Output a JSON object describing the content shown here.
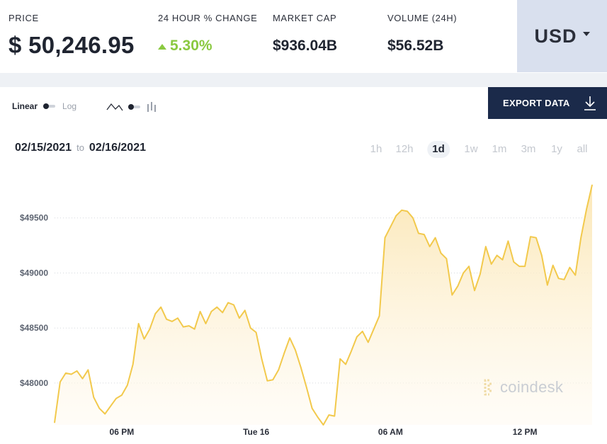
{
  "stats": {
    "price_label": "PRICE",
    "price_value": "$ 50,246.95",
    "change_label": "24 HOUR % CHANGE",
    "change_value": "5.30%",
    "mcap_label": "MARKET CAP",
    "mcap_value": "$936.04B",
    "volume_label": "VOLUME (24H)",
    "volume_value": "$56.52B"
  },
  "currency": "USD",
  "controls": {
    "scale_linear": "Linear",
    "scale_log": "Log",
    "export_label": "EXPORT DATA",
    "date_from": "02/15/2021",
    "date_to_word": "to",
    "date_to": "02/16/2021",
    "ranges": [
      "1h",
      "12h",
      "1d",
      "1w",
      "1m",
      "3m",
      "1y",
      "all"
    ],
    "active_range": "1d"
  },
  "colors": {
    "line": "#f2c94c",
    "fill_top": "#fbe6b3",
    "change_up": "#8ac940",
    "export_bg": "#1b2a4a",
    "currency_bg": "#d9e0ee"
  },
  "watermark": "coindesk",
  "chart_data": {
    "type": "area",
    "title": "",
    "xlabel": "",
    "ylabel": "",
    "x_tick_labels": [
      "06 PM",
      "Tue 16",
      "06 AM",
      "12 PM"
    ],
    "y_ticks": [
      48000,
      48500,
      49000,
      49500
    ],
    "y_tick_labels": [
      "$48000",
      "$48500",
      "$49000",
      "$49500"
    ],
    "ylim": [
      47620,
      50000
    ],
    "xlim": [
      "2021-02-15T15:00",
      "2021-02-16T15:00"
    ],
    "grid": "horizontal-dotted",
    "series": [
      {
        "x": [
          "2021-02-15T15:00",
          "2021-02-15T15:15",
          "2021-02-15T15:30",
          "2021-02-15T15:45",
          "2021-02-15T16:00",
          "2021-02-15T16:15",
          "2021-02-15T16:30",
          "2021-02-15T16:45",
          "2021-02-15T17:00",
          "2021-02-15T17:15",
          "2021-02-15T17:30",
          "2021-02-15T17:45",
          "2021-02-15T18:00",
          "2021-02-15T18:15",
          "2021-02-15T18:30",
          "2021-02-15T18:45",
          "2021-02-15T19:00",
          "2021-02-15T19:15",
          "2021-02-15T19:30",
          "2021-02-15T19:45",
          "2021-02-15T20:00",
          "2021-02-15T20:15",
          "2021-02-15T20:30",
          "2021-02-15T20:45",
          "2021-02-15T21:00",
          "2021-02-15T21:15",
          "2021-02-15T21:30",
          "2021-02-15T21:45",
          "2021-02-15T22:00",
          "2021-02-15T22:15",
          "2021-02-15T22:30",
          "2021-02-15T22:45",
          "2021-02-15T23:00",
          "2021-02-15T23:15",
          "2021-02-15T23:30",
          "2021-02-15T23:45",
          "2021-02-16T00:00",
          "2021-02-16T00:15",
          "2021-02-16T00:30",
          "2021-02-16T00:45",
          "2021-02-16T01:00",
          "2021-02-16T01:15",
          "2021-02-16T01:30",
          "2021-02-16T01:45",
          "2021-02-16T02:00",
          "2021-02-16T02:15",
          "2021-02-16T02:30",
          "2021-02-16T02:45",
          "2021-02-16T03:00",
          "2021-02-16T03:15",
          "2021-02-16T03:30",
          "2021-02-16T03:45",
          "2021-02-16T04:00",
          "2021-02-16T04:15",
          "2021-02-16T04:30",
          "2021-02-16T04:45",
          "2021-02-16T05:00",
          "2021-02-16T05:15",
          "2021-02-16T05:30",
          "2021-02-16T05:45",
          "2021-02-16T06:00",
          "2021-02-16T06:15",
          "2021-02-16T06:30",
          "2021-02-16T06:45",
          "2021-02-16T07:00",
          "2021-02-16T07:15",
          "2021-02-16T07:30",
          "2021-02-16T07:45",
          "2021-02-16T08:00",
          "2021-02-16T08:15",
          "2021-02-16T08:30",
          "2021-02-16T08:45",
          "2021-02-16T09:00",
          "2021-02-16T09:15",
          "2021-02-16T09:30",
          "2021-02-16T09:45",
          "2021-02-16T10:00",
          "2021-02-16T10:15",
          "2021-02-16T10:30",
          "2021-02-16T10:45",
          "2021-02-16T11:00",
          "2021-02-16T11:15",
          "2021-02-16T11:30",
          "2021-02-16T11:45",
          "2021-02-16T12:00",
          "2021-02-16T12:15",
          "2021-02-16T12:30",
          "2021-02-16T12:45",
          "2021-02-16T13:00",
          "2021-02-16T13:15",
          "2021-02-16T13:30",
          "2021-02-16T13:45",
          "2021-02-16T14:00",
          "2021-02-16T14:15",
          "2021-02-16T14:30",
          "2021-02-16T14:45",
          "2021-02-16T15:00"
        ],
        "values": [
          47640,
          48010,
          48090,
          48080,
          48110,
          48040,
          48120,
          47870,
          47770,
          47720,
          47790,
          47860,
          47890,
          47980,
          48170,
          48540,
          48400,
          48490,
          48630,
          48690,
          48580,
          48560,
          48590,
          48510,
          48520,
          48490,
          48650,
          48540,
          48650,
          48690,
          48640,
          48730,
          48710,
          48590,
          48660,
          48500,
          48460,
          48220,
          48020,
          48030,
          48120,
          48270,
          48410,
          48300,
          48140,
          47960,
          47770,
          47690,
          47620,
          47710,
          47700,
          48220,
          48170,
          48290,
          48420,
          48470,
          48370,
          48490,
          48610,
          49320,
          49420,
          49520,
          49570,
          49560,
          49500,
          49360,
          49350,
          49240,
          49320,
          49180,
          49130,
          48800,
          48880,
          49000,
          49060,
          48840,
          48990,
          49240,
          49080,
          49160,
          49120,
          49290,
          49100,
          49060,
          49060,
          49330,
          49320,
          49160,
          48890,
          49070,
          48950,
          48940,
          49050,
          48980,
          49320,
          49580,
          49800
        ]
      }
    ]
  }
}
